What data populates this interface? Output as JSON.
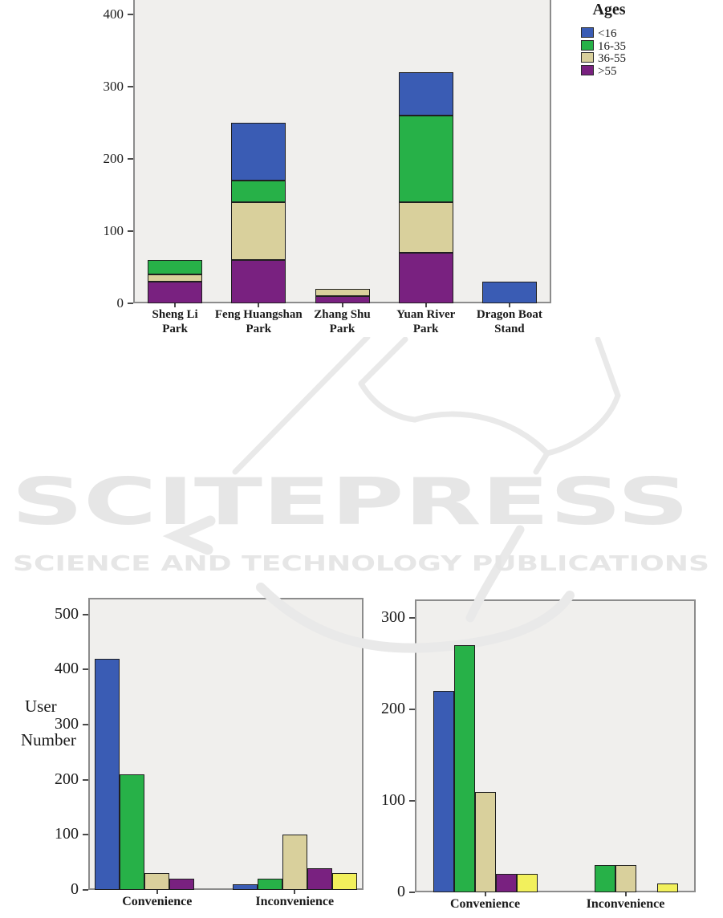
{
  "watermark": {
    "brand": "SCITEPRESS",
    "tagline": "SCIENCE AND TECHNOLOGY PUBLICATIONS",
    "color": "#e6e6e6"
  },
  "palette": {
    "blue": "#3a5cb4",
    "green": "#27b148",
    "tan": "#d9d09c",
    "purple": "#792180",
    "yellow": "#f2f05c",
    "plot_bg": "#f0efed",
    "plot_border": "#8c8c8c",
    "bar_border": "#1f1f1f",
    "text": "#1a1a1a"
  },
  "chart_data": [
    {
      "id": "parks",
      "type": "bar",
      "stacked": true,
      "categories": [
        "Sheng Li Park",
        "Feng Huangshan Park",
        "Zhang Shu Park",
        "Yuan River Park",
        "Dragon Boat Stand"
      ],
      "category_label_lines": [
        [
          "Sheng Li",
          "Park"
        ],
        [
          "Feng Huangshan",
          "Park"
        ],
        [
          "Zhang Shu",
          "Park"
        ],
        [
          "Yuan River",
          "Park"
        ],
        [
          "Dragon Boat",
          "Stand"
        ]
      ],
      "series": [
        {
          "name": "<16",
          "color": "blue",
          "values": [
            0,
            80,
            0,
            60,
            30
          ]
        },
        {
          "name": "16-35",
          "color": "green",
          "values": [
            20,
            30,
            0,
            120,
            0
          ]
        },
        {
          "name": "36-55",
          "color": "tan",
          "values": [
            10,
            80,
            10,
            70,
            0
          ]
        },
        {
          "name": ">55",
          "color": "purple",
          "values": [
            30,
            60,
            10,
            70,
            0
          ]
        }
      ],
      "stack_bottom_to_top": [
        ">55",
        "36-55",
        "16-35",
        "<16"
      ],
      "totals": [
        60,
        250,
        20,
        320,
        30
      ],
      "legend": {
        "title": "Ages",
        "position": "top-right"
      },
      "yticks": [
        0,
        100,
        200,
        300,
        400
      ],
      "ylim": [
        0,
        420
      ],
      "grid": false
    },
    {
      "id": "left",
      "type": "bar",
      "stacked": false,
      "ylabel": "User Number",
      "ylabel_lines": [
        "User",
        "Number"
      ],
      "categories": [
        "Convenience",
        "Inconvenience"
      ],
      "series": [
        {
          "name": "blue",
          "color": "blue",
          "values": [
            420,
            10
          ]
        },
        {
          "name": "green",
          "color": "green",
          "values": [
            210,
            20
          ]
        },
        {
          "name": "tan",
          "color": "tan",
          "values": [
            30,
            100
          ]
        },
        {
          "name": "purple",
          "color": "purple",
          "values": [
            20,
            40
          ]
        },
        {
          "name": "yellow",
          "color": "yellow",
          "values": [
            0,
            30
          ]
        }
      ],
      "yticks": [
        0,
        100,
        200,
        300,
        400,
        500
      ],
      "ylim": [
        0,
        530
      ],
      "grid": false
    },
    {
      "id": "right",
      "type": "bar",
      "stacked": false,
      "categories": [
        "Convenience",
        "Inconvenience"
      ],
      "series": [
        {
          "name": "blue",
          "color": "blue",
          "values": [
            220,
            0
          ]
        },
        {
          "name": "green",
          "color": "green",
          "values": [
            270,
            30
          ]
        },
        {
          "name": "tan",
          "color": "tan",
          "values": [
            110,
            30
          ]
        },
        {
          "name": "purple",
          "color": "purple",
          "values": [
            20,
            0
          ]
        },
        {
          "name": "yellow",
          "color": "yellow",
          "values": [
            20,
            10
          ]
        }
      ],
      "yticks": [
        0,
        100,
        200,
        300
      ],
      "ylim": [
        0,
        320
      ],
      "grid": false
    }
  ]
}
